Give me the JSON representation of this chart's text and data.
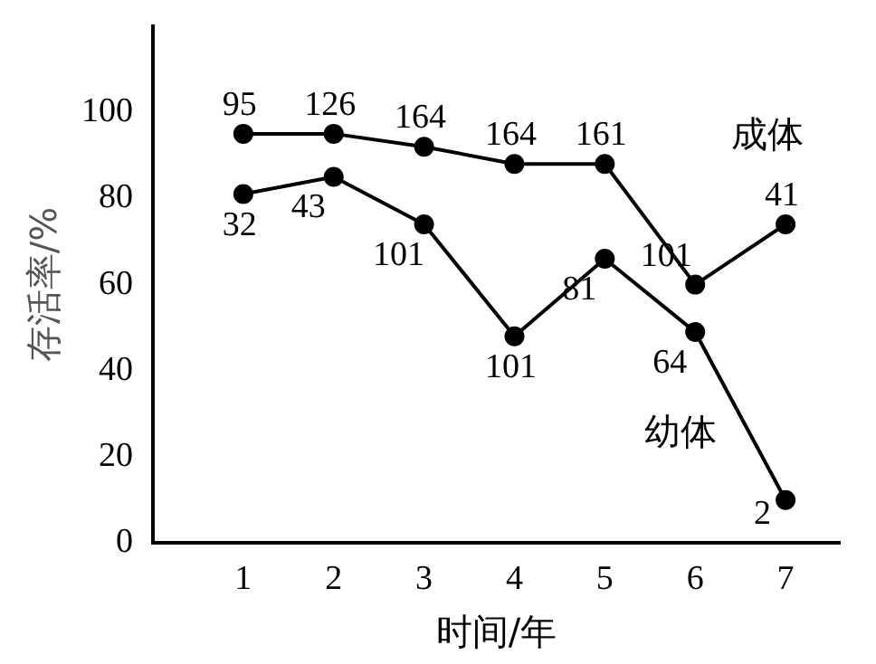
{
  "chart_data": {
    "type": "line",
    "xlabel": "时间/年",
    "ylabel": "存活率/%",
    "x": [
      1,
      2,
      3,
      4,
      5,
      6,
      7
    ],
    "series": [
      {
        "name": "成体",
        "color": "#000000",
        "values": [
          95,
          95,
          92,
          88,
          88,
          60,
          74
        ]
      },
      {
        "name": "幼体",
        "color": "#000000",
        "values": [
          81,
          85,
          74,
          48,
          66,
          49,
          10
        ]
      }
    ],
    "xlim": [
      0,
      7.6
    ],
    "xticks": [
      1,
      2,
      3,
      4,
      5,
      6,
      7
    ],
    "ylim": [
      0,
      120
    ],
    "yticks": [
      0,
      20,
      40,
      60,
      80,
      100
    ],
    "grid": false,
    "legend": false,
    "marker": "circle",
    "line_style": "solid",
    "annotations": [
      {
        "text": "95",
        "x": 1,
        "y": 95
      },
      {
        "text": "126",
        "x": 2,
        "y": 95
      },
      {
        "text": "164",
        "x": 3,
        "y": 92
      },
      {
        "text": "164",
        "x": 4,
        "y": 88
      },
      {
        "text": "161",
        "x": 5,
        "y": 88
      },
      {
        "text": "101",
        "x": 6,
        "y": 60
      },
      {
        "text": "41",
        "x": 7,
        "y": 74
      },
      {
        "text": "32",
        "x": 1,
        "y": 81
      },
      {
        "text": "43",
        "x": 2,
        "y": 85
      },
      {
        "text": "101",
        "x": 3,
        "y": 74
      },
      {
        "text": "101",
        "x": 4,
        "y": 48
      },
      {
        "text": "81",
        "x": 5,
        "y": 66
      },
      {
        "text": "64",
        "x": 6,
        "y": 49
      },
      {
        "text": "2",
        "x": 7,
        "y": 10
      }
    ]
  }
}
